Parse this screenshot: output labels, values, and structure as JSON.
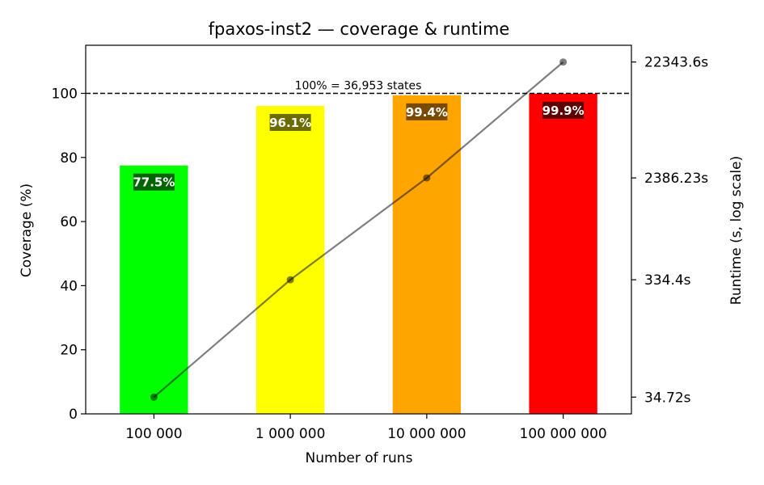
{
  "chart_data": {
    "type": "bar",
    "title": "fpaxos-inst2 — coverage & runtime",
    "xlabel": "Number of runs",
    "ylabel": "Coverage (%)",
    "ylabel_right": "Runtime (s, log scale)",
    "categories": [
      "100 000",
      "1 000 000",
      "10 000 000",
      "100 000 000"
    ],
    "series": [
      {
        "axis": "left",
        "kind": "bar",
        "values": [
          77.5,
          96.1,
          99.4,
          99.9
        ],
        "value_labels": [
          "77.5%",
          "96.1%",
          "99.4%",
          "99.9%"
        ],
        "colors": [
          "#00ff00",
          "#ffff00",
          "#ffa500",
          "#ff0000"
        ],
        "label_bg_colors": [
          "#006400",
          "#6b6b00",
          "#7a4a00",
          "#5c0000"
        ]
      },
      {
        "axis": "right",
        "kind": "line",
        "values": [
          34.72,
          334.4,
          2386.23,
          22343.6
        ],
        "color": "#7f7f7f"
      }
    ],
    "ylim": [
      0,
      115
    ],
    "yticks": [
      0,
      20,
      40,
      60,
      80,
      100
    ],
    "y2_scale": "log",
    "y2ticks": [
      34.72,
      334.4,
      2386.23,
      22343.6
    ],
    "y2tick_labels": [
      "34.72s",
      "334.4s",
      "2386.23s",
      "22343.6s"
    ],
    "reference_line": {
      "y": 100,
      "label": "100% = 36,953 states",
      "style": "dashed"
    },
    "grid": false,
    "legend": "none"
  }
}
